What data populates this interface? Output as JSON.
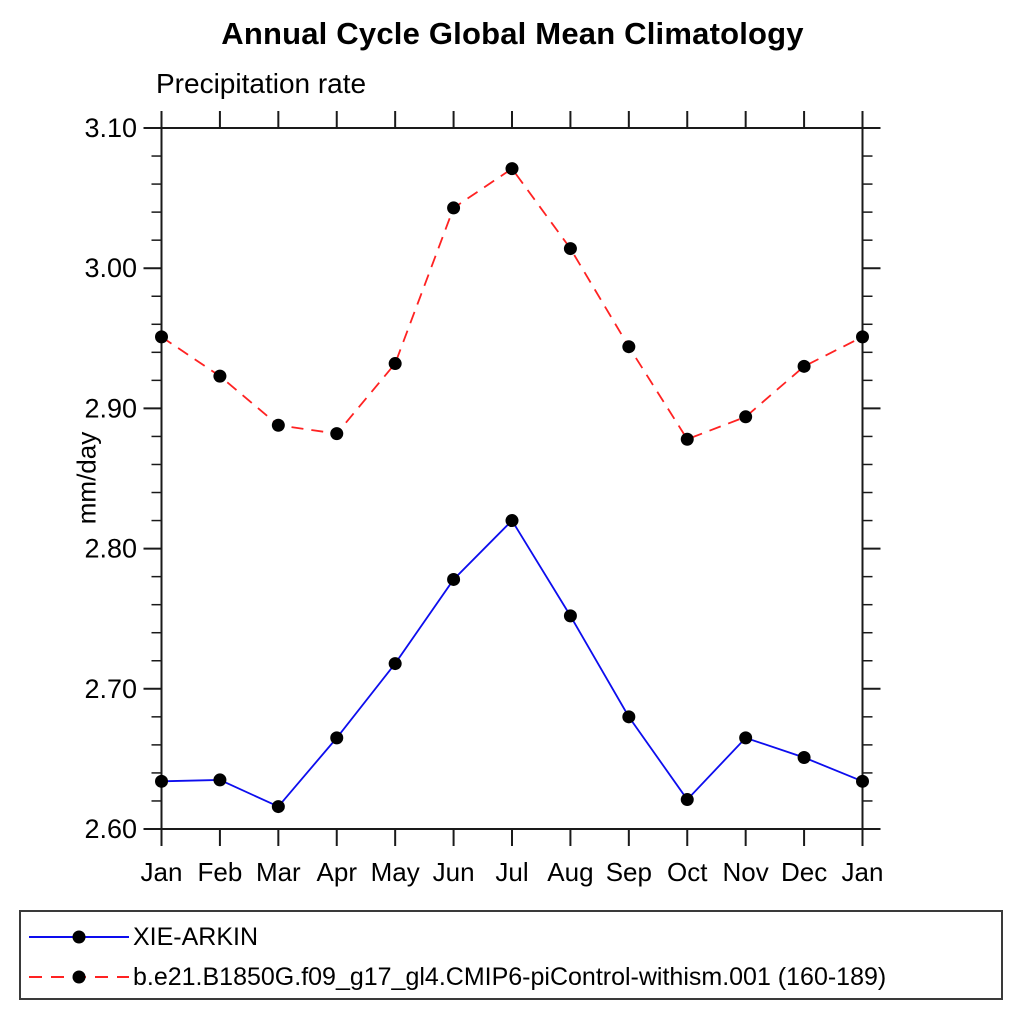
{
  "header": {
    "title": "Annual Cycle Global Mean Climatology",
    "subtitle": "Precipitation rate"
  },
  "chart_data": {
    "type": "line",
    "title": "Annual Cycle Global Mean Climatology",
    "subtitle": "Precipitation rate",
    "ylabel": "mm/day",
    "xlabel": "",
    "categories": [
      "Jan",
      "Feb",
      "Mar",
      "Apr",
      "May",
      "Jun",
      "Jul",
      "Aug",
      "Sep",
      "Oct",
      "Nov",
      "Dec",
      "Jan"
    ],
    "ylim": [
      2.6,
      3.1
    ],
    "ytick_labels": [
      "2.60",
      "2.70",
      "2.80",
      "2.90",
      "3.00",
      "3.10"
    ],
    "ytick_step": 0.1,
    "yminor_step": 0.02,
    "grid": false,
    "legend_position": "bottom",
    "marker": "filled-circle",
    "marker_color": "#000000",
    "axis_color": "#1a1a1a",
    "series": [
      {
        "name": "XIE-ARKIN",
        "color": "#0d0dee",
        "line_style": "solid",
        "values": [
          2.634,
          2.635,
          2.616,
          2.665,
          2.718,
          2.778,
          2.82,
          2.752,
          2.68,
          2.621,
          2.665,
          2.651,
          2.634
        ]
      },
      {
        "name": "b.e21.B1850G.f09_g17_gl4.CMIP6-piControl-withism.001 (160-189)",
        "color": "#ff2222",
        "line_style": "dashed",
        "values": [
          2.951,
          2.923,
          2.888,
          2.882,
          2.932,
          3.043,
          3.071,
          3.014,
          2.944,
          2.878,
          2.894,
          2.93,
          2.951
        ]
      }
    ]
  }
}
